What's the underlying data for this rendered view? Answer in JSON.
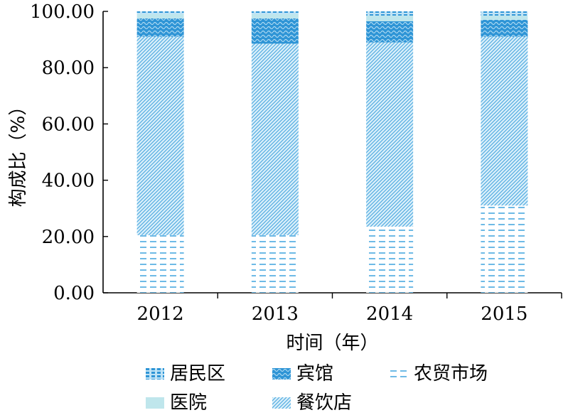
{
  "chart_data": {
    "type": "bar",
    "stacked": true,
    "title": "",
    "xlabel": "时间（年）",
    "ylabel": "构成比（%）",
    "ylim": [
      0,
      100
    ],
    "y_ticks": [
      "0.00",
      "20.00",
      "40.00",
      "60.00",
      "80.00",
      "100.00"
    ],
    "categories": [
      "2012",
      "2013",
      "2014",
      "2015"
    ],
    "series": [
      {
        "name": "农贸市场",
        "values": [
          20.5,
          20.5,
          23.5,
          31.0
        ],
        "color": "#4aa8e0",
        "pattern": "dash"
      },
      {
        "name": "餐饮店",
        "values": [
          70.5,
          68.0,
          65.5,
          60.0
        ],
        "color": "#4aa8e0",
        "pattern": "diagonal"
      },
      {
        "name": "宾馆",
        "values": [
          6.5,
          9.0,
          7.5,
          6.0
        ],
        "color": "#3a9bd8",
        "pattern": "wave"
      },
      {
        "name": "医院",
        "values": [
          1.5,
          1.5,
          2.0,
          1.5
        ],
        "color": "#bfe6ec",
        "pattern": "solid"
      },
      {
        "name": "居民区",
        "values": [
          1.0,
          1.0,
          1.5,
          1.5
        ],
        "color": "#3a9bd8",
        "pattern": "dots"
      }
    ],
    "legend_order": [
      "居民区",
      "宾馆",
      "农贸市场",
      "医院",
      "餐饮店"
    ],
    "legend_position": "bottom",
    "grid": false
  }
}
